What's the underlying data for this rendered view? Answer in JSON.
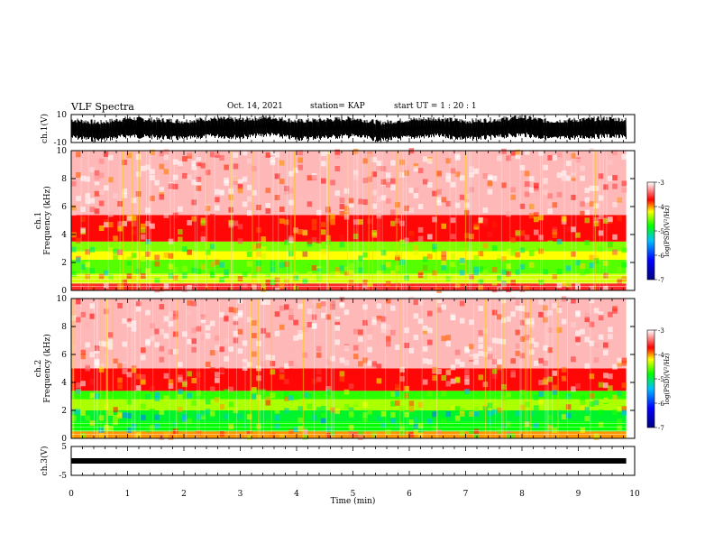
{
  "header": {
    "title": "VLF Spectra",
    "date": "Oct. 14, 2021",
    "station": "station= KAP",
    "start": "start  UT =   1 : 20 : 1"
  },
  "chart_data": [
    {
      "type": "line",
      "name": "ch1-waveform",
      "ylabel": "ch.1(V)",
      "ylim": [
        -10,
        10
      ],
      "yticks": [
        "10",
        "-10"
      ],
      "xlim": [
        0,
        10
      ],
      "x": [
        0,
        0.5,
        1,
        1.5,
        2,
        2.5,
        3,
        3.5,
        4,
        4.5,
        5,
        5.5,
        6,
        6.5,
        7,
        7.5,
        8,
        8.5,
        9,
        9.5,
        9.85
      ],
      "y": [
        0,
        -2,
        1,
        0,
        -1,
        1,
        0,
        2,
        -1,
        0,
        1,
        -2,
        0,
        1,
        -1,
        0,
        2,
        -1,
        0,
        1,
        0
      ]
    },
    {
      "type": "heatmap",
      "name": "ch1-spectrogram",
      "ylabel": "ch.1\nFrequency (kHz)",
      "ylim": [
        0,
        10
      ],
      "yticks": [
        "0",
        "2",
        "4",
        "6",
        "8",
        "10"
      ],
      "xlim": [
        0,
        10
      ],
      "colorbar": {
        "label": "log(PSD)(V²/Hz)",
        "range": [
          -7,
          -3
        ],
        "ticks": [
          "-3",
          "-4",
          "-5",
          "-6",
          "-7"
        ]
      },
      "bands": [
        {
          "from": 0,
          "to": 0.5,
          "level": -3.6
        },
        {
          "from": 0.5,
          "to": 1.2,
          "level": -4.3
        },
        {
          "from": 1.2,
          "to": 2.2,
          "level": -4.6
        },
        {
          "from": 2.2,
          "to": 2.8,
          "level": -4.2
        },
        {
          "from": 2.8,
          "to": 3.5,
          "level": -4.5
        },
        {
          "from": 3.5,
          "to": 5.4,
          "level": -3.7
        },
        {
          "from": 5.4,
          "to": 10,
          "level": -3.2
        }
      ]
    },
    {
      "type": "heatmap",
      "name": "ch2-spectrogram",
      "ylabel": "ch.2\nFrequency (kHz)",
      "ylim": [
        0,
        10
      ],
      "yticks": [
        "0",
        "2",
        "4",
        "6",
        "8",
        "10"
      ],
      "xlim": [
        0,
        10
      ],
      "colorbar": {
        "label": "log(PSD)(V²/Hz)",
        "range": [
          -7,
          -3
        ],
        "ticks": [
          "-3",
          "-4",
          "-5",
          "-6",
          "-7"
        ]
      },
      "bands": [
        {
          "from": 0,
          "to": 0.5,
          "level": -4.0
        },
        {
          "from": 0.5,
          "to": 1.2,
          "level": -4.8
        },
        {
          "from": 1.2,
          "to": 2.0,
          "level": -4.9
        },
        {
          "from": 2.0,
          "to": 2.8,
          "level": -4.4
        },
        {
          "from": 2.8,
          "to": 3.4,
          "level": -4.7
        },
        {
          "from": 3.4,
          "to": 5.0,
          "level": -3.7
        },
        {
          "from": 5.0,
          "to": 10,
          "level": -3.2
        }
      ]
    },
    {
      "type": "line",
      "name": "ch3-waveform",
      "ylabel": "ch.3(V)",
      "ylim": [
        -5,
        5
      ],
      "yticks": [
        "5",
        "-5"
      ],
      "xlim": [
        0,
        10
      ],
      "x": [
        0,
        9.85
      ],
      "y": [
        0,
        0
      ]
    }
  ],
  "xaxis": {
    "label": "Time (min)",
    "ticks": [
      "0",
      "1",
      "2",
      "3",
      "4",
      "5",
      "6",
      "7",
      "8",
      "9",
      "10"
    ]
  },
  "colors": {
    "low": "#0000ff",
    "mid": "#00ff00",
    "high": "#ff0000",
    "top": "#ffffff"
  }
}
